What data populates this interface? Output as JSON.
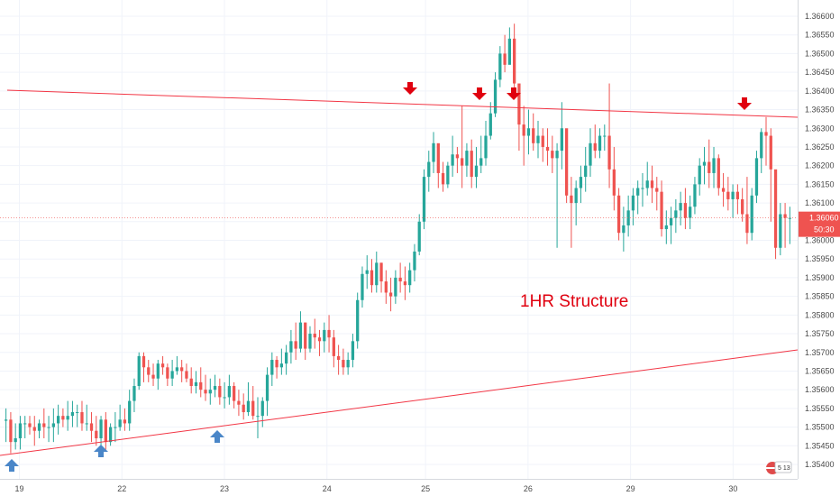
{
  "colors": {
    "up": "#26a69a",
    "down": "#ef5350",
    "line": "#f23645",
    "arrow_up": "#4a86c8",
    "arrow_down": "#e0000f",
    "grid": "#f0f3fa",
    "price_badge": "#ef5350",
    "axis_text": "#4a4a4a"
  },
  "annotation_text": "1HR Structure",
  "price_badge": {
    "price": "1.36060",
    "countdown": "50:30"
  },
  "footer_badge": "5 13",
  "chart_data": {
    "type": "candlestick",
    "title": "",
    "xlabel": "",
    "ylabel": "",
    "ylim": [
      1.3535,
      1.3664
    ],
    "grid": true,
    "x_range": [
      0,
      200
    ],
    "x_ticks": [
      {
        "x": 4,
        "label": "19"
      },
      {
        "x": 30,
        "label": "22"
      },
      {
        "x": 56,
        "label": "23"
      },
      {
        "x": 82,
        "label": "24"
      },
      {
        "x": 107,
        "label": "25"
      },
      {
        "x": 133,
        "label": "26"
      },
      {
        "x": 159,
        "label": "29"
      },
      {
        "x": 185,
        "label": "30"
      }
    ],
    "y_ticks": [
      "1.36600",
      "1.36550",
      "1.36500",
      "1.36450",
      "1.36400",
      "1.36350",
      "1.36300",
      "1.36250",
      "1.36200",
      "1.36150",
      "1.36100",
      "1.36050",
      "1.36000",
      "1.35950",
      "1.35900",
      "1.35850",
      "1.35800",
      "1.35750",
      "1.35700",
      "1.35650",
      "1.35600",
      "1.35550",
      "1.35500",
      "1.35450",
      "1.35400"
    ],
    "current_price": 1.3606,
    "candles_hlc": [
      [
        1.3555,
        1.3546,
        1.3552
      ],
      [
        1.3554,
        1.3543,
        1.3546
      ],
      [
        1.3551,
        1.3544,
        1.3547
      ],
      [
        1.3553,
        1.3544,
        1.3551
      ],
      [
        1.3553,
        1.3547,
        1.3551
      ],
      [
        1.3553,
        1.3548,
        1.355
      ],
      [
        1.3553,
        1.3545,
        1.3549
      ],
      [
        1.3552,
        1.3547,
        1.3551
      ],
      [
        1.3555,
        1.3547,
        1.355
      ],
      [
        1.3553,
        1.3546,
        1.355
      ],
      [
        1.3555,
        1.3546,
        1.3551
      ],
      [
        1.3556,
        1.3548,
        1.3553
      ],
      [
        1.3555,
        1.355,
        1.3552
      ],
      [
        1.3557,
        1.3549,
        1.3553
      ],
      [
        1.3557,
        1.355,
        1.3554
      ],
      [
        1.3556,
        1.355,
        1.3554
      ],
      [
        1.3557,
        1.3549,
        1.3551
      ],
      [
        1.3556,
        1.3549,
        1.3551
      ],
      [
        1.3554,
        1.3546,
        1.3549
      ],
      [
        1.3553,
        1.3545,
        1.3547
      ],
      [
        1.3553,
        1.3545,
        1.3552
      ],
      [
        1.3554,
        1.3544,
        1.3546
      ],
      [
        1.3551,
        1.3545,
        1.355
      ],
      [
        1.3554,
        1.3546,
        1.355
      ],
      [
        1.3556,
        1.3549,
        1.3552
      ],
      [
        1.3555,
        1.3549,
        1.3551
      ],
      [
        1.356,
        1.3549,
        1.3557
      ],
      [
        1.3563,
        1.3554,
        1.3561
      ],
      [
        1.357,
        1.356,
        1.3569
      ],
      [
        1.357,
        1.3562,
        1.3566
      ],
      [
        1.3568,
        1.3562,
        1.3564
      ],
      [
        1.3567,
        1.3561,
        1.3563
      ],
      [
        1.3568,
        1.356,
        1.3567
      ],
      [
        1.3569,
        1.3564,
        1.3566
      ],
      [
        1.3567,
        1.3561,
        1.3563
      ],
      [
        1.3568,
        1.3561,
        1.3565
      ],
      [
        1.3569,
        1.3564,
        1.3566
      ],
      [
        1.3568,
        1.3562,
        1.3565
      ],
      [
        1.3567,
        1.3562,
        1.3563
      ],
      [
        1.3566,
        1.3559,
        1.3561
      ],
      [
        1.3565,
        1.3559,
        1.3562
      ],
      [
        1.3566,
        1.3558,
        1.356
      ],
      [
        1.3564,
        1.3557,
        1.3559
      ],
      [
        1.3563,
        1.3556,
        1.356
      ],
      [
        1.3564,
        1.3558,
        1.3561
      ],
      [
        1.3563,
        1.3556,
        1.3558
      ],
      [
        1.3562,
        1.3555,
        1.3558
      ],
      [
        1.3564,
        1.3556,
        1.3561
      ],
      [
        1.3562,
        1.3555,
        1.3557
      ],
      [
        1.356,
        1.3553,
        1.3556
      ],
      [
        1.3559,
        1.3552,
        1.3554
      ],
      [
        1.3562,
        1.3553,
        1.3557
      ],
      [
        1.3561,
        1.3552,
        1.3553
      ],
      [
        1.3558,
        1.3547,
        1.3553
      ],
      [
        1.3558,
        1.355,
        1.3557
      ],
      [
        1.3566,
        1.3553,
        1.3564
      ],
      [
        1.357,
        1.3561,
        1.3568
      ],
      [
        1.3569,
        1.3563,
        1.3566
      ],
      [
        1.3571,
        1.3564,
        1.3567
      ],
      [
        1.3572,
        1.3564,
        1.357
      ],
      [
        1.3576,
        1.3567,
        1.3573
      ],
      [
        1.3578,
        1.3568,
        1.3571
      ],
      [
        1.3581,
        1.357,
        1.3578
      ],
      [
        1.3578,
        1.3568,
        1.3571
      ],
      [
        1.3577,
        1.357,
        1.3575
      ],
      [
        1.3579,
        1.3571,
        1.3574
      ],
      [
        1.3576,
        1.3569,
        1.3573
      ],
      [
        1.3578,
        1.357,
        1.3576
      ],
      [
        1.358,
        1.357,
        1.3574
      ],
      [
        1.3576,
        1.3566,
        1.3569
      ],
      [
        1.3572,
        1.3564,
        1.3568
      ],
      [
        1.3571,
        1.3564,
        1.3566
      ],
      [
        1.357,
        1.3564,
        1.3568
      ],
      [
        1.3575,
        1.3566,
        1.3573
      ],
      [
        1.3586,
        1.3571,
        1.3584
      ],
      [
        1.3593,
        1.3582,
        1.3591
      ],
      [
        1.3596,
        1.3587,
        1.3592
      ],
      [
        1.3595,
        1.3586,
        1.3588
      ],
      [
        1.3597,
        1.3586,
        1.3594
      ],
      [
        1.3594,
        1.3586,
        1.3589
      ],
      [
        1.3592,
        1.3583,
        1.3586
      ],
      [
        1.359,
        1.3581,
        1.3585
      ],
      [
        1.3592,
        1.3583,
        1.359
      ],
      [
        1.3594,
        1.3586,
        1.3589
      ],
      [
        1.3593,
        1.3584,
        1.3588
      ],
      [
        1.3594,
        1.3586,
        1.3592
      ],
      [
        1.3599,
        1.3589,
        1.3597
      ],
      [
        1.3607,
        1.3596,
        1.3605
      ],
      [
        1.3619,
        1.3603,
        1.3617
      ],
      [
        1.3624,
        1.3613,
        1.3621
      ],
      [
        1.3629,
        1.3618,
        1.3626
      ],
      [
        1.3624,
        1.3614,
        1.3618
      ],
      [
        1.3621,
        1.3613,
        1.3615
      ],
      [
        1.3621,
        1.3614,
        1.362
      ],
      [
        1.3628,
        1.3617,
        1.3623
      ],
      [
        1.3625,
        1.3618,
        1.3622
      ],
      [
        1.3636,
        1.3614,
        1.362
      ],
      [
        1.3626,
        1.3617,
        1.3624
      ],
      [
        1.3627,
        1.3614,
        1.3617
      ],
      [
        1.3625,
        1.3614,
        1.362
      ],
      [
        1.3628,
        1.3618,
        1.3622
      ],
      [
        1.3632,
        1.362,
        1.3628
      ],
      [
        1.3637,
        1.3627,
        1.3634
      ],
      [
        1.3645,
        1.3633,
        1.3643
      ],
      [
        1.3652,
        1.3641,
        1.365
      ],
      [
        1.3655,
        1.3645,
        1.3647
      ],
      [
        1.3657,
        1.3648,
        1.3654
      ],
      [
        1.3658,
        1.3638,
        1.3642
      ],
      [
        1.364,
        1.3624,
        1.3631
      ],
      [
        1.3636,
        1.362,
        1.3628
      ],
      [
        1.3635,
        1.3623,
        1.363
      ],
      [
        1.3634,
        1.3624,
        1.3626
      ],
      [
        1.3632,
        1.3622,
        1.3628
      ],
      [
        1.363,
        1.3621,
        1.3625
      ],
      [
        1.363,
        1.362,
        1.3624
      ],
      [
        1.3628,
        1.3618,
        1.3622
      ],
      [
        1.3626,
        1.3598,
        1.3624
      ],
      [
        1.3637,
        1.3619,
        1.363
      ],
      [
        1.3628,
        1.361,
        1.3612
      ],
      [
        1.3617,
        1.3598,
        1.361
      ],
      [
        1.3616,
        1.3604,
        1.3614
      ],
      [
        1.362,
        1.361,
        1.3617
      ],
      [
        1.3625,
        1.3613,
        1.362
      ],
      [
        1.363,
        1.3617,
        1.3626
      ],
      [
        1.3631,
        1.3622,
        1.3624
      ],
      [
        1.363,
        1.3622,
        1.3628
      ],
      [
        1.3631,
        1.3624,
        1.3628
      ],
      [
        1.3642,
        1.3614,
        1.3619
      ],
      [
        1.3625,
        1.3608,
        1.3612
      ],
      [
        1.3614,
        1.36,
        1.3602
      ],
      [
        1.3609,
        1.3597,
        1.3604
      ],
      [
        1.3612,
        1.3601,
        1.3608
      ],
      [
        1.3614,
        1.3604,
        1.3612
      ],
      [
        1.3616,
        1.3607,
        1.3614
      ],
      [
        1.3618,
        1.3609,
        1.3614
      ],
      [
        1.3621,
        1.3612,
        1.3616
      ],
      [
        1.362,
        1.361,
        1.3614
      ],
      [
        1.3617,
        1.3608,
        1.3613
      ],
      [
        1.3616,
        1.3601,
        1.3603
      ],
      [
        1.3608,
        1.3599,
        1.3604
      ],
      [
        1.3609,
        1.3599,
        1.3606
      ],
      [
        1.3611,
        1.3602,
        1.3608
      ],
      [
        1.3613,
        1.3604,
        1.361
      ],
      [
        1.3614,
        1.3603,
        1.3606
      ],
      [
        1.3612,
        1.3603,
        1.3609
      ],
      [
        1.3617,
        1.3607,
        1.3615
      ],
      [
        1.3622,
        1.3612,
        1.362
      ],
      [
        1.3625,
        1.3615,
        1.3621
      ],
      [
        1.3627,
        1.3614,
        1.3618
      ],
      [
        1.3625,
        1.3614,
        1.3622
      ],
      [
        1.3623,
        1.3612,
        1.3614
      ],
      [
        1.3618,
        1.3609,
        1.3613
      ],
      [
        1.3617,
        1.3608,
        1.3611
      ],
      [
        1.3615,
        1.3606,
        1.3613
      ],
      [
        1.3615,
        1.3607,
        1.3611
      ],
      [
        1.3614,
        1.3605,
        1.3607
      ],
      [
        1.3617,
        1.3599,
        1.3602
      ],
      [
        1.3614,
        1.36,
        1.3612
      ],
      [
        1.3624,
        1.361,
        1.3622
      ],
      [
        1.363,
        1.3618,
        1.3629
      ],
      [
        1.3633,
        1.362,
        1.3628
      ],
      [
        1.363,
        1.3605,
        1.3619
      ],
      [
        1.3618,
        1.3595,
        1.3598
      ],
      [
        1.361,
        1.3596,
        1.3607
      ],
      [
        1.361,
        1.3598,
        1.3606
      ],
      [
        1.3609,
        1.3599,
        1.3606
      ]
    ]
  }
}
